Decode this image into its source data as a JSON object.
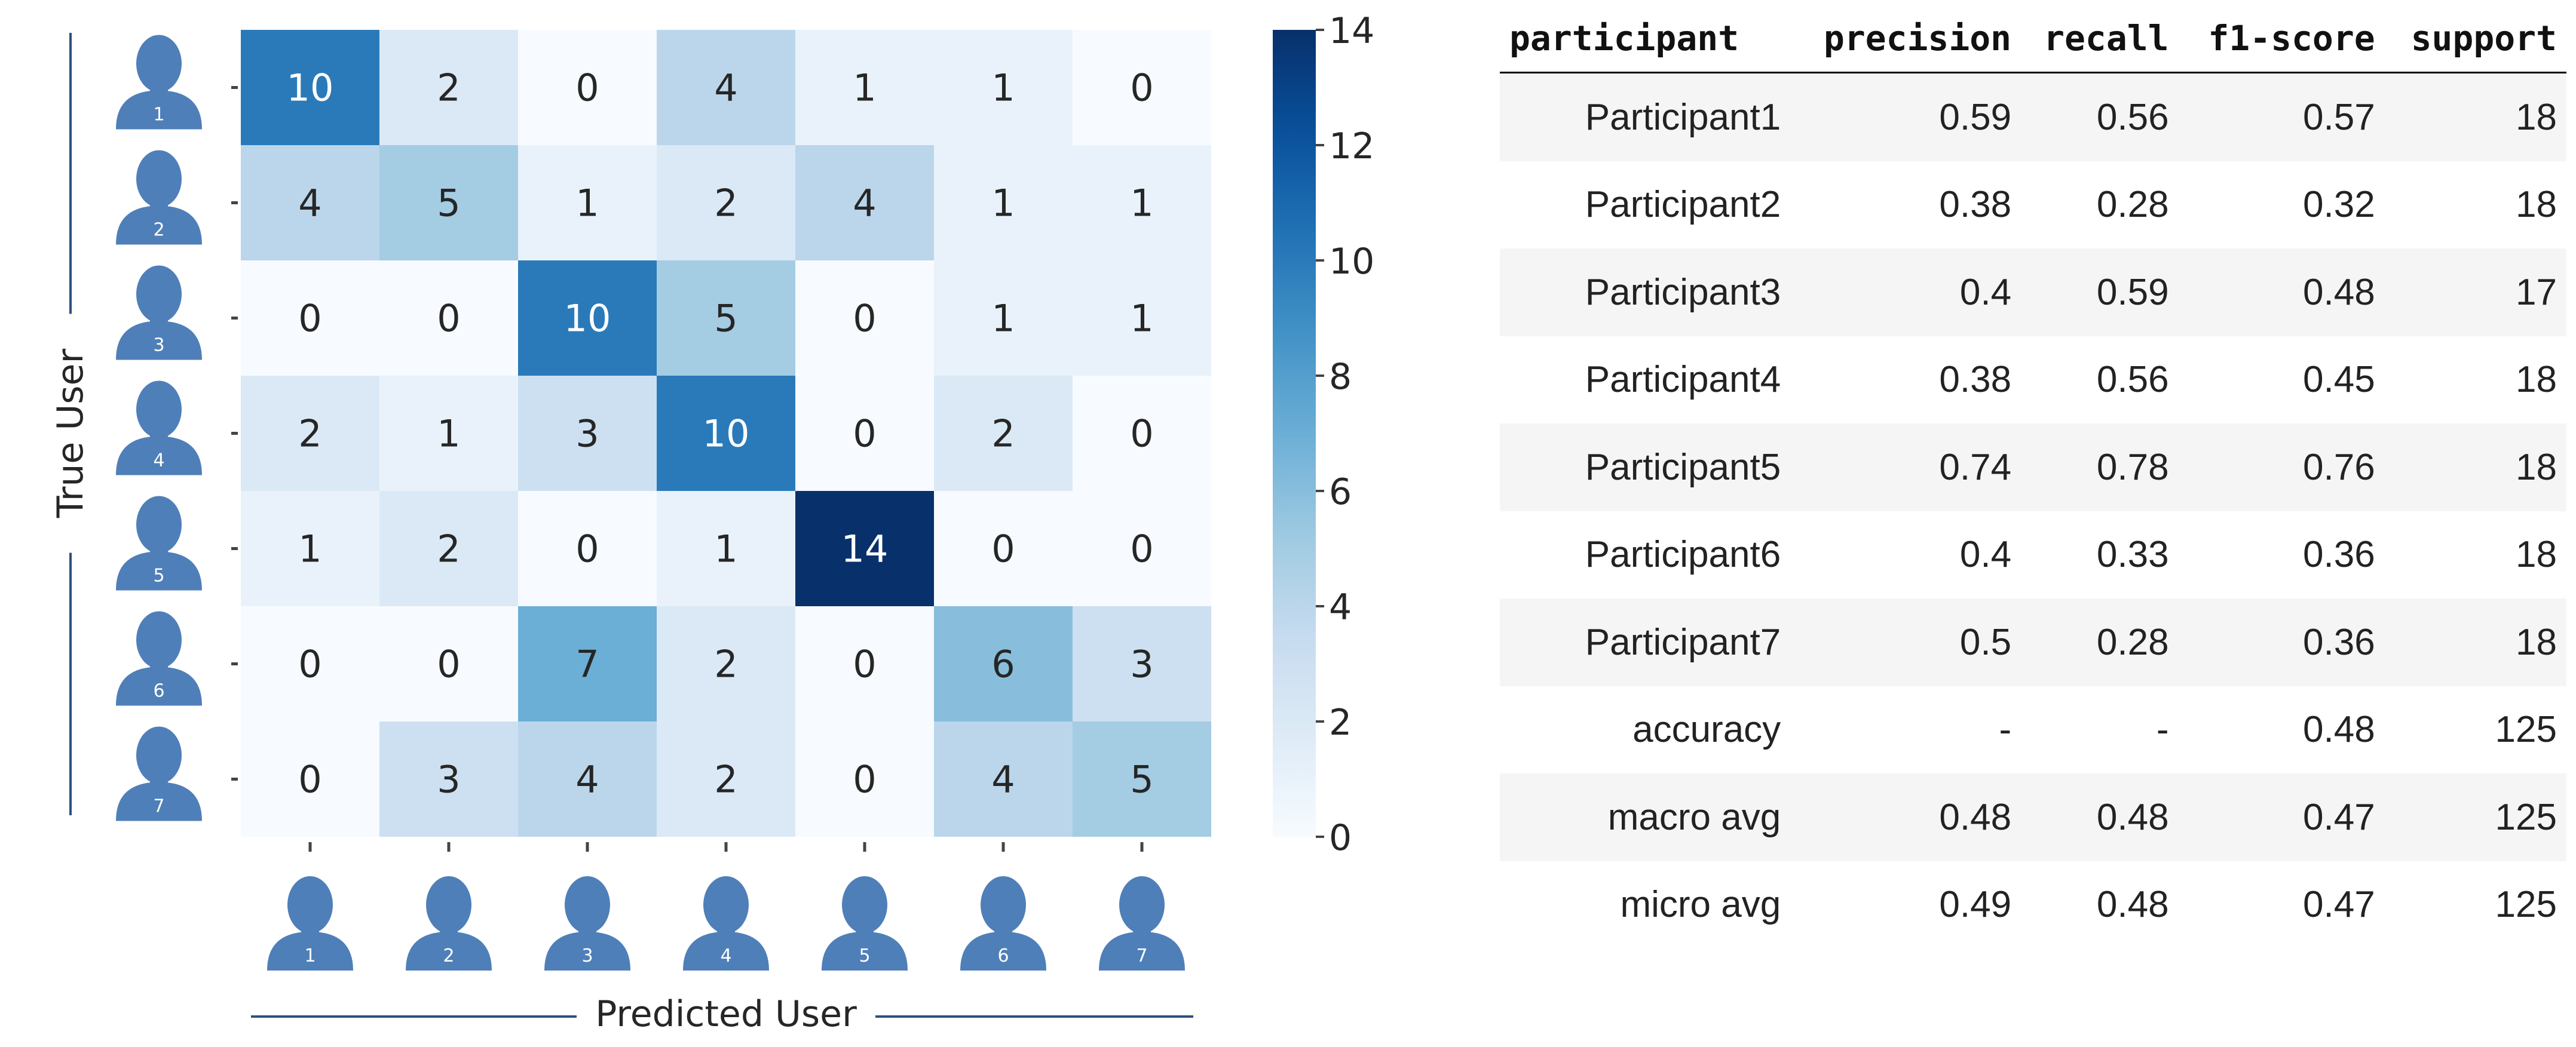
{
  "chart_data": {
    "type": "heatmap",
    "xlabel": "Predicted User",
    "ylabel": "True User",
    "x_categories": [
      "1",
      "2",
      "3",
      "4",
      "5",
      "6",
      "7"
    ],
    "y_categories": [
      "1",
      "2",
      "3",
      "4",
      "5",
      "6",
      "7"
    ],
    "values": [
      [
        10,
        2,
        0,
        4,
        1,
        1,
        0
      ],
      [
        4,
        5,
        1,
        2,
        4,
        1,
        1
      ],
      [
        0,
        0,
        10,
        5,
        0,
        1,
        1
      ],
      [
        2,
        1,
        3,
        10,
        0,
        2,
        0
      ],
      [
        1,
        2,
        0,
        1,
        14,
        0,
        0
      ],
      [
        0,
        0,
        7,
        2,
        0,
        6,
        3
      ],
      [
        0,
        3,
        4,
        2,
        0,
        4,
        5
      ]
    ],
    "colorbar": {
      "min": 0,
      "max": 14,
      "ticks": [
        "0",
        "2",
        "4",
        "6",
        "8",
        "10",
        "12",
        "14"
      ]
    },
    "colormap": "Blues",
    "colors": {
      "low": "#f7fbff",
      "high": "#08306b"
    }
  },
  "report": {
    "headers": [
      "participant",
      "precision",
      "recall",
      "f1-score",
      "support"
    ],
    "rows": [
      [
        "Participant1",
        "0.59",
        "0.56",
        "0.57",
        "18"
      ],
      [
        "Participant2",
        "0.38",
        "0.28",
        "0.32",
        "18"
      ],
      [
        "Participant3",
        "0.4",
        "0.59",
        "0.48",
        "17"
      ],
      [
        "Participant4",
        "0.38",
        "0.56",
        "0.45",
        "18"
      ],
      [
        "Participant5",
        "0.74",
        "0.78",
        "0.76",
        "18"
      ],
      [
        "Participant6",
        "0.4",
        "0.33",
        "0.36",
        "18"
      ],
      [
        "Participant7",
        "0.5",
        "0.28",
        "0.36",
        "18"
      ],
      [
        "accuracy",
        "-",
        "-",
        "0.48",
        "125"
      ],
      [
        "macro avg",
        "0.48",
        "0.48",
        "0.47",
        "125"
      ],
      [
        "micro avg",
        "0.49",
        "0.48",
        "0.47",
        "125"
      ]
    ]
  },
  "icons": {
    "name": "user-silhouette-icon",
    "color": "#4f7fb8"
  }
}
